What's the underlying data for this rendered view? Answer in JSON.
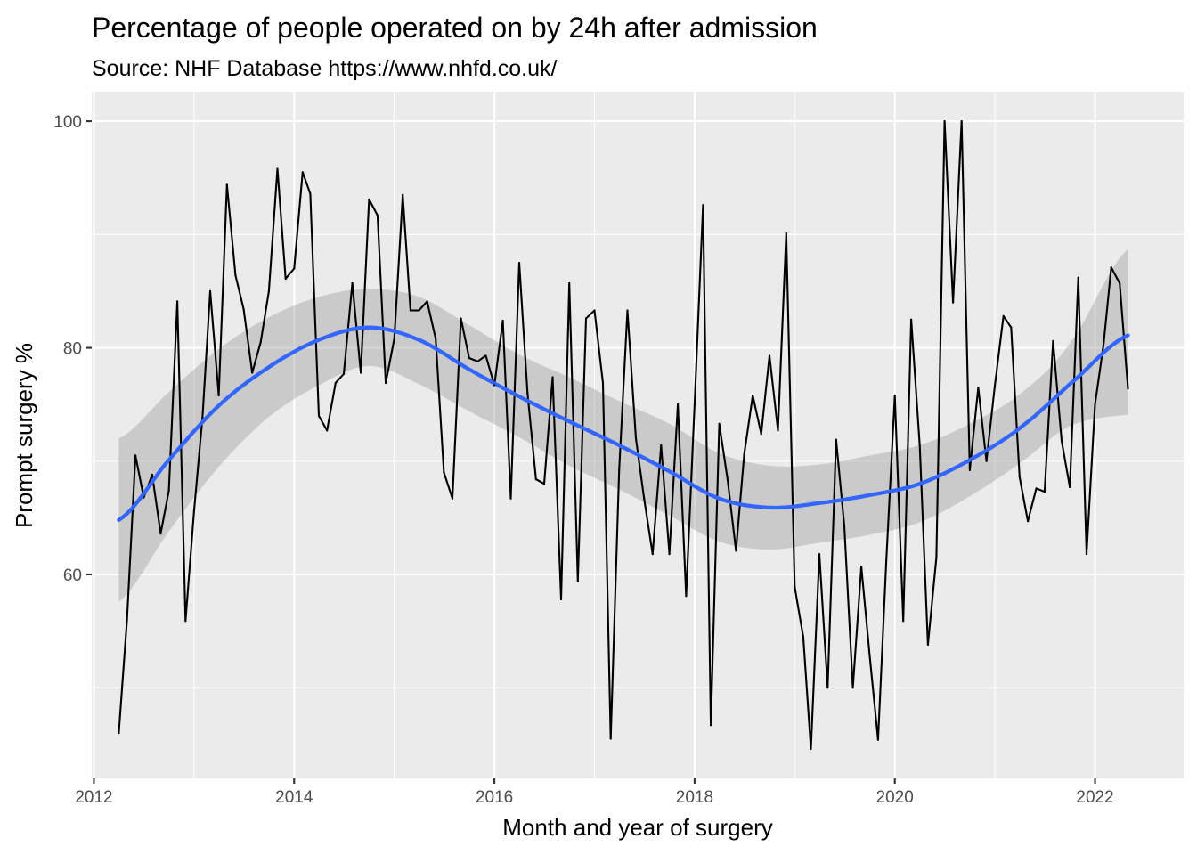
{
  "chart_data": {
    "type": "line",
    "title": "Percentage of people operated on by 24h after admission",
    "subtitle": "Source: NHF Database https://www.nhfd.co.uk/",
    "xlabel": "Month and year of surgery",
    "ylabel": "Prompt surgery %",
    "x_ticks": [
      "2012",
      "2014",
      "2016",
      "2018",
      "2020",
      "2022"
    ],
    "y_ticks": [
      "60",
      "80",
      "100"
    ],
    "xlim": [
      "2011-12-24",
      "2022-11-20"
    ],
    "ylim": [
      42,
      102.6
    ],
    "grid": true,
    "series": [
      {
        "kind": "observed",
        "color": "#000000",
        "points": [
          [
            "2012-04",
            46.0
          ],
          [
            "2012-05",
            56.0
          ],
          [
            "2012-06",
            70.5
          ],
          [
            "2012-07",
            66.8
          ],
          [
            "2012-08",
            68.8
          ],
          [
            "2012-09",
            63.6
          ],
          [
            "2012-10",
            67.4
          ],
          [
            "2012-11",
            84.1
          ],
          [
            "2012-12",
            55.9
          ],
          [
            "2013-01",
            65.6
          ],
          [
            "2013-02",
            73.9
          ],
          [
            "2013-03",
            85.0
          ],
          [
            "2013-04",
            75.8
          ],
          [
            "2013-05",
            94.4
          ],
          [
            "2013-06",
            86.4
          ],
          [
            "2013-07",
            83.4
          ],
          [
            "2013-08",
            77.8
          ],
          [
            "2013-09",
            80.5
          ],
          [
            "2013-10",
            85.0
          ],
          [
            "2013-11",
            95.8
          ],
          [
            "2013-12",
            86.1
          ],
          [
            "2014-01",
            87.0
          ],
          [
            "2014-02",
            95.5
          ],
          [
            "2014-03",
            93.6
          ],
          [
            "2014-04",
            74.0
          ],
          [
            "2014-05",
            72.7
          ],
          [
            "2014-06",
            76.9
          ],
          [
            "2014-07",
            77.7
          ],
          [
            "2014-08",
            85.7
          ],
          [
            "2014-09",
            77.8
          ],
          [
            "2014-10",
            93.1
          ],
          [
            "2014-11",
            91.7
          ],
          [
            "2014-12",
            76.9
          ],
          [
            "2015-01",
            80.8
          ],
          [
            "2015-02",
            93.5
          ],
          [
            "2015-03",
            83.3
          ],
          [
            "2015-04",
            83.3
          ],
          [
            "2015-05",
            84.1
          ],
          [
            "2015-06",
            80.8
          ],
          [
            "2015-07",
            69.0
          ],
          [
            "2015-08",
            66.7
          ],
          [
            "2015-09",
            82.6
          ],
          [
            "2015-10",
            79.1
          ],
          [
            "2015-11",
            78.8
          ],
          [
            "2015-12",
            79.3
          ],
          [
            "2016-01",
            76.7
          ],
          [
            "2016-02",
            82.4
          ],
          [
            "2016-03",
            66.7
          ],
          [
            "2016-04",
            87.5
          ],
          [
            "2016-05",
            76.0
          ],
          [
            "2016-06",
            68.4
          ],
          [
            "2016-07",
            68.0
          ],
          [
            "2016-08",
            77.4
          ],
          [
            "2016-09",
            57.8
          ],
          [
            "2016-10",
            85.7
          ],
          [
            "2016-11",
            59.4
          ],
          [
            "2016-12",
            82.6
          ],
          [
            "2017-01",
            83.3
          ],
          [
            "2017-02",
            76.9
          ],
          [
            "2017-03",
            45.5
          ],
          [
            "2017-04",
            69.2
          ],
          [
            "2017-05",
            83.3
          ],
          [
            "2017-06",
            72.0
          ],
          [
            "2017-07",
            66.7
          ],
          [
            "2017-08",
            61.8
          ],
          [
            "2017-09",
            71.4
          ],
          [
            "2017-10",
            61.8
          ],
          [
            "2017-11",
            75.0
          ],
          [
            "2017-12",
            58.1
          ],
          [
            "2018-01",
            75.0
          ],
          [
            "2018-02",
            92.6
          ],
          [
            "2018-03",
            46.7
          ],
          [
            "2018-04",
            73.3
          ],
          [
            "2018-05",
            68.4
          ],
          [
            "2018-06",
            62.1
          ],
          [
            "2018-07",
            70.6
          ],
          [
            "2018-08",
            75.8
          ],
          [
            "2018-09",
            72.4
          ],
          [
            "2018-10",
            79.3
          ],
          [
            "2018-11",
            72.7
          ],
          [
            "2018-12",
            90.1
          ],
          [
            "2019-01",
            58.9
          ],
          [
            "2019-02",
            54.5
          ],
          [
            "2019-03",
            44.6
          ],
          [
            "2019-04",
            61.8
          ],
          [
            "2019-05",
            50.0
          ],
          [
            "2019-06",
            71.9
          ],
          [
            "2019-07",
            64.3
          ],
          [
            "2019-08",
            50.0
          ],
          [
            "2019-09",
            60.7
          ],
          [
            "2019-10",
            52.9
          ],
          [
            "2019-11",
            45.4
          ],
          [
            "2019-12",
            61.3
          ],
          [
            "2020-01",
            75.8
          ],
          [
            "2020-02",
            55.9
          ],
          [
            "2020-03",
            82.5
          ],
          [
            "2020-04",
            71.4
          ],
          [
            "2020-05",
            53.8
          ],
          [
            "2020-06",
            61.5
          ],
          [
            "2020-07",
            100.0
          ],
          [
            "2020-08",
            84.0
          ],
          [
            "2020-09",
            100.0
          ],
          [
            "2020-10",
            69.2
          ],
          [
            "2020-11",
            76.5
          ],
          [
            "2020-12",
            70.0
          ],
          [
            "2021-01",
            76.7
          ],
          [
            "2021-02",
            82.8
          ],
          [
            "2021-03",
            81.8
          ],
          [
            "2021-04",
            68.6
          ],
          [
            "2021-05",
            64.7
          ],
          [
            "2021-06",
            67.6
          ],
          [
            "2021-07",
            67.3
          ],
          [
            "2021-08",
            80.6
          ],
          [
            "2021-09",
            71.8
          ],
          [
            "2021-10",
            67.7
          ],
          [
            "2021-11",
            86.2
          ],
          [
            "2021-12",
            61.8
          ],
          [
            "2022-01",
            75.0
          ],
          [
            "2022-02",
            80.3
          ],
          [
            "2022-03",
            87.1
          ],
          [
            "2022-04",
            85.7
          ],
          [
            "2022-05",
            76.4
          ]
        ]
      },
      {
        "kind": "smooth",
        "color": "#3366ff",
        "band_color": "#999999",
        "points": [
          [
            "2012-04",
            64.8,
            57.6,
            72.0
          ],
          [
            "2012-10",
            70.1,
            63.8,
            76.1
          ],
          [
            "2013-04",
            74.9,
            69.5,
            79.9
          ],
          [
            "2013-10",
            78.3,
            73.9,
            82.7
          ],
          [
            "2014-04",
            80.7,
            76.7,
            84.5
          ],
          [
            "2014-10",
            81.8,
            78.4,
            85.2
          ],
          [
            "2015-04",
            80.7,
            76.8,
            84.5
          ],
          [
            "2015-10",
            78.1,
            74.4,
            82.0
          ],
          [
            "2016-04",
            75.7,
            72.1,
            79.4
          ],
          [
            "2016-10",
            73.5,
            69.6,
            77.4
          ],
          [
            "2017-04",
            71.4,
            67.5,
            75.3
          ],
          [
            "2017-10",
            69.1,
            65.2,
            73.3
          ],
          [
            "2018-04",
            66.7,
            62.9,
            70.7
          ],
          [
            "2018-10",
            65.9,
            62.2,
            69.6
          ],
          [
            "2019-04",
            66.3,
            62.8,
            69.7
          ],
          [
            "2019-10",
            67.0,
            63.5,
            70.5
          ],
          [
            "2020-04",
            68.0,
            64.6,
            71.4
          ],
          [
            "2020-10",
            70.1,
            66.9,
            73.3
          ],
          [
            "2021-04",
            72.9,
            69.8,
            75.9
          ],
          [
            "2021-10",
            76.8,
            73.1,
            80.4
          ],
          [
            "2022-05",
            81.1,
            74.1,
            88.7
          ]
        ]
      }
    ]
  }
}
